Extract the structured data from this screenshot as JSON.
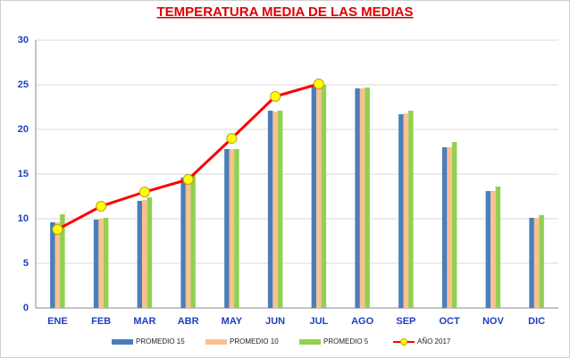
{
  "chart_data": {
    "type": "bar",
    "title": "TEMPERATURA MEDIA DE LAS MEDIAS",
    "categories": [
      "ENE",
      "FEB",
      "MAR",
      "ABR",
      "MAY",
      "JUN",
      "JUL",
      "AGO",
      "SEP",
      "OCT",
      "NOV",
      "DIC"
    ],
    "series": [
      {
        "name": "PROMEDIO 15",
        "color": "#4a7ebb",
        "values": [
          9.6,
          9.9,
          12.0,
          14.6,
          17.8,
          22.1,
          25.0,
          24.6,
          21.7,
          18.0,
          13.1,
          10.1
        ]
      },
      {
        "name": "PROMEDIO 10",
        "color": "#fac090",
        "values": [
          9.6,
          10.0,
          12.1,
          14.6,
          17.8,
          22.0,
          24.9,
          24.6,
          21.8,
          18.0,
          13.1,
          10.1
        ]
      },
      {
        "name": "PROMEDIO 5",
        "color": "#92d050",
        "values": [
          10.5,
          10.1,
          12.4,
          14.9,
          17.8,
          22.1,
          25.0,
          24.7,
          22.1,
          18.6,
          13.6,
          10.4
        ]
      },
      {
        "name": "AÑO 2017",
        "color": "#ff0000",
        "type": "line",
        "marker_color": "#ffff00",
        "values": [
          8.8,
          11.4,
          13.0,
          14.4,
          19.0,
          23.7,
          25.1,
          null,
          null,
          null,
          null,
          null
        ]
      }
    ],
    "ylim": [
      0,
      30
    ],
    "yticks": [
      0,
      5,
      10,
      15,
      20,
      25,
      30
    ],
    "grid": true,
    "legend": "bottom"
  }
}
